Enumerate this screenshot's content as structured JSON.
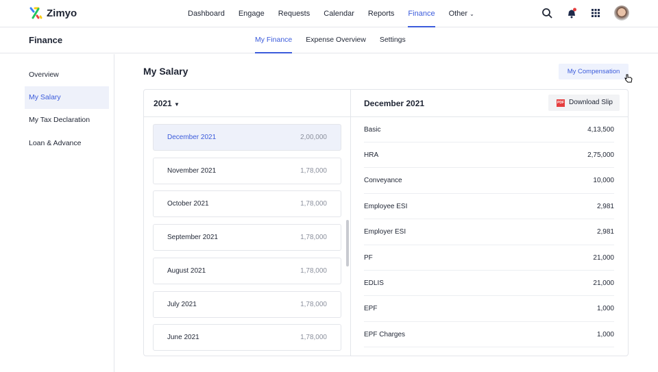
{
  "app": {
    "name": "Zimyo"
  },
  "nav": [
    "Dashboard",
    "Engage",
    "Requests",
    "Calendar",
    "Reports",
    "Finance",
    "Other"
  ],
  "sub": {
    "title": "Finance",
    "tabs": [
      "My Finance",
      "Expense Overview",
      "Settings"
    ]
  },
  "sidebar": [
    "Overview",
    "My Salary",
    "My Tax Declaration",
    "Loan & Advance"
  ],
  "page": {
    "title": "My Salary",
    "comp_button": "My Compensation",
    "year": "2021",
    "detail_title": "December 2021",
    "download": "Download Slip",
    "pdf": "PDF"
  },
  "months": [
    {
      "m": "December 2021",
      "a": "2,00,000"
    },
    {
      "m": "November 2021",
      "a": "1,78,000"
    },
    {
      "m": "October 2021",
      "a": "1,78,000"
    },
    {
      "m": "September 2021",
      "a": "1,78,000"
    },
    {
      "m": "August 2021",
      "a": "1,78,000"
    },
    {
      "m": "July 2021",
      "a": "1,78,000"
    },
    {
      "m": "June 2021",
      "a": "1,78,000"
    }
  ],
  "components": [
    {
      "n": "Basic",
      "v": "4,13,500"
    },
    {
      "n": "HRA",
      "v": "2,75,000"
    },
    {
      "n": "Conveyance",
      "v": "10,000"
    },
    {
      "n": "Employee ESI",
      "v": "2,981"
    },
    {
      "n": "Employer ESI",
      "v": "2,981"
    },
    {
      "n": "PF",
      "v": "21,000"
    },
    {
      "n": "EDLIS",
      "v": "21,000"
    },
    {
      "n": "EPF",
      "v": "1,000"
    },
    {
      "n": "EPF Charges",
      "v": "1,000"
    }
  ],
  "colors": {
    "accent": "#3b5bdb"
  }
}
